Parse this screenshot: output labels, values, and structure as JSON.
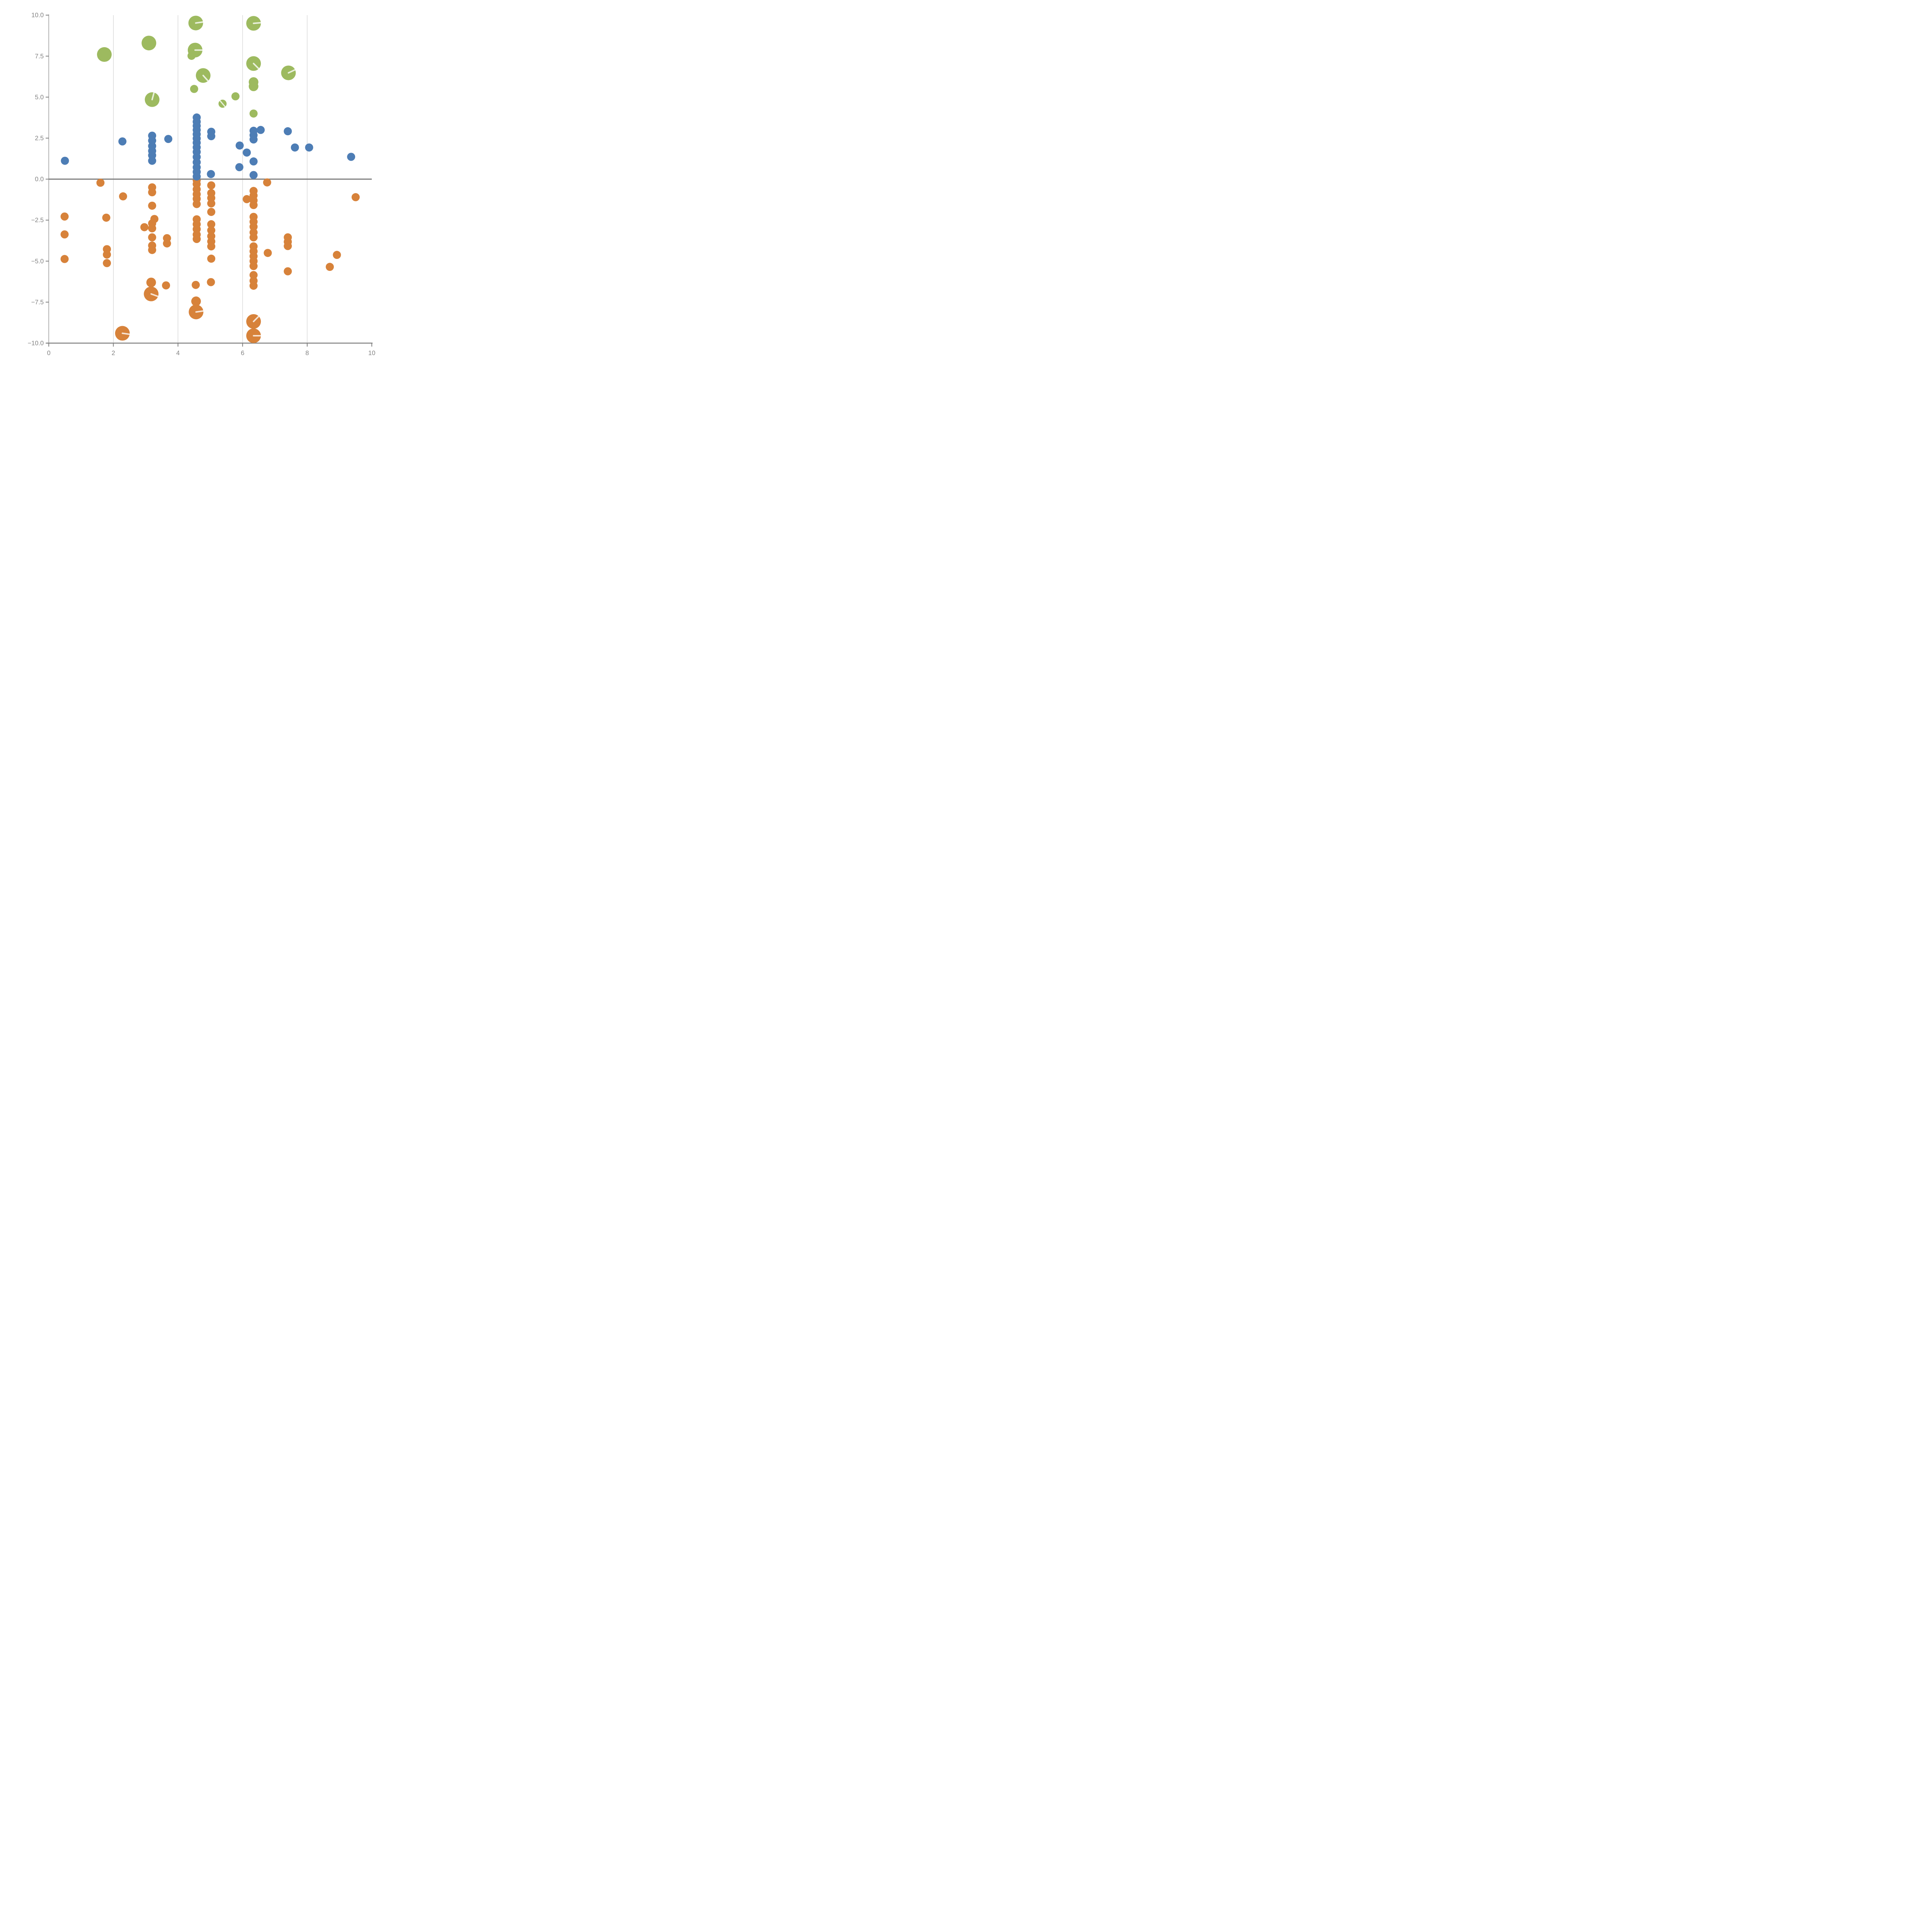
{
  "chart_data": {
    "type": "scatter",
    "title": "",
    "xlabel": "",
    "ylabel": "",
    "xlim": [
      0,
      10
    ],
    "ylim": [
      -10,
      10
    ],
    "x_ticks": [
      0,
      2,
      4,
      6,
      8,
      10
    ],
    "x_tick_labels": [
      "0",
      "2",
      "4",
      "6",
      "8",
      "10"
    ],
    "y_ticks": [
      10.0,
      7.5,
      5.0,
      2.5,
      0.0,
      -2.5,
      -5.0,
      -7.5,
      -10.0
    ],
    "y_tick_labels": [
      "10.0",
      "7.5",
      "5.0",
      "2.5",
      "0.0",
      "−2.5",
      "−5.0",
      "−7.5",
      "−10.0"
    ],
    "grid": "vertical gridlines at x = 2,4,6,8 only",
    "legend_position": "none",
    "zero_line_y": 0,
    "marker_sizes_px": {
      "s": 10.5,
      "m": 12.5,
      "l": 19
    },
    "series": [
      {
        "name": "green-bubbles",
        "color": "#9dba5f",
        "points": [
          [
            1.72,
            7.6,
            "l",
            null
          ],
          [
            3.1,
            8.3,
            "l",
            null
          ],
          [
            4.55,
            9.52,
            "l",
            -8
          ],
          [
            4.53,
            7.87,
            "l",
            0
          ],
          [
            4.42,
            7.52,
            "s",
            null
          ],
          [
            4.78,
            6.32,
            "l",
            48
          ],
          [
            4.5,
            5.5,
            "s",
            null
          ],
          [
            3.2,
            4.85,
            "l",
            -75
          ],
          [
            6.34,
            9.5,
            "l",
            -5
          ],
          [
            6.34,
            7.05,
            "l",
            45
          ],
          [
            6.34,
            5.92,
            "m",
            null
          ],
          [
            6.34,
            5.66,
            "m",
            null
          ],
          [
            6.34,
            4.0,
            "s",
            null
          ],
          [
            7.42,
            6.48,
            "l",
            -25
          ],
          [
            5.78,
            5.05,
            "s",
            null
          ],
          [
            5.38,
            4.6,
            "s",
            50,
            2
          ]
        ]
      },
      {
        "name": "blue-dots",
        "color": "#4d7db5",
        "points": [
          [
            0.5,
            1.12
          ],
          [
            2.28,
            2.3
          ],
          [
            3.2,
            2.65
          ],
          [
            3.2,
            2.35
          ],
          [
            3.2,
            2.02
          ],
          [
            3.2,
            1.72
          ],
          [
            3.2,
            1.45
          ],
          [
            3.2,
            1.12
          ],
          [
            3.7,
            2.45
          ],
          [
            4.58,
            3.76
          ],
          [
            4.58,
            3.5
          ],
          [
            4.58,
            3.25
          ],
          [
            4.58,
            3.0
          ],
          [
            4.58,
            2.74
          ],
          [
            4.58,
            2.48
          ],
          [
            4.58,
            2.22
          ],
          [
            4.58,
            1.94
          ],
          [
            4.58,
            1.66
          ],
          [
            4.58,
            1.35
          ],
          [
            4.58,
            1.03
          ],
          [
            4.58,
            0.72
          ],
          [
            4.58,
            0.44
          ],
          [
            4.58,
            0.16
          ],
          [
            5.03,
            2.89
          ],
          [
            5.03,
            2.62
          ],
          [
            5.02,
            0.31
          ],
          [
            5.91,
            2.05
          ],
          [
            5.9,
            0.73
          ],
          [
            6.13,
            1.62
          ],
          [
            6.34,
            2.95
          ],
          [
            6.34,
            2.68
          ],
          [
            6.34,
            2.42
          ],
          [
            6.34,
            1.08
          ],
          [
            6.34,
            0.25
          ],
          [
            6.56,
            3.0
          ],
          [
            7.4,
            2.92
          ],
          [
            7.62,
            1.93
          ],
          [
            8.06,
            1.93
          ],
          [
            9.36,
            1.36
          ]
        ]
      },
      {
        "name": "orange-dots",
        "color": "#d7823a",
        "points": [
          [
            1.6,
            -0.22
          ],
          [
            2.3,
            -1.05
          ],
          [
            0.49,
            -2.28
          ],
          [
            0.49,
            -3.37
          ],
          [
            0.49,
            -4.87
          ],
          [
            1.78,
            -2.35
          ],
          [
            1.8,
            -4.27
          ],
          [
            1.8,
            -4.6
          ],
          [
            1.8,
            -5.12
          ],
          [
            3.2,
            -0.5
          ],
          [
            3.2,
            -0.8
          ],
          [
            3.2,
            -1.62
          ],
          [
            3.27,
            -2.43
          ],
          [
            3.2,
            -2.7
          ],
          [
            2.96,
            -2.93
          ],
          [
            3.2,
            -3.0
          ],
          [
            3.2,
            -3.55
          ],
          [
            3.2,
            -4.05
          ],
          [
            3.2,
            -4.32
          ],
          [
            3.66,
            -3.6
          ],
          [
            3.66,
            -3.92
          ],
          [
            3.17,
            -6.3,
            "m"
          ],
          [
            3.17,
            -7.0,
            "l",
            20
          ],
          [
            3.63,
            -6.48
          ],
          [
            4.58,
            -0.06,
            "s",
            null,
            "under"
          ],
          [
            4.58,
            -0.3
          ],
          [
            4.58,
            -0.62
          ],
          [
            4.58,
            -0.92
          ],
          [
            4.58,
            -1.2
          ],
          [
            4.58,
            -1.52
          ],
          [
            4.58,
            -2.45
          ],
          [
            4.58,
            -2.75
          ],
          [
            4.58,
            -3.05
          ],
          [
            4.58,
            -3.38
          ],
          [
            4.58,
            -3.65
          ],
          [
            4.55,
            -6.45
          ],
          [
            4.56,
            -7.45,
            "m"
          ],
          [
            4.56,
            -8.1,
            "l",
            -8
          ],
          [
            5.03,
            -0.38
          ],
          [
            5.03,
            -0.85
          ],
          [
            5.03,
            -1.15
          ],
          [
            5.03,
            -1.48
          ],
          [
            5.03,
            -2.0
          ],
          [
            5.03,
            -2.75
          ],
          [
            5.03,
            -3.12
          ],
          [
            5.03,
            -3.48
          ],
          [
            5.03,
            -3.8
          ],
          [
            5.03,
            -4.1
          ],
          [
            5.03,
            -4.85
          ],
          [
            5.02,
            -6.28
          ],
          [
            6.34,
            -0.72
          ],
          [
            6.34,
            -1.0
          ],
          [
            6.34,
            -1.3
          ],
          [
            6.34,
            -1.58
          ],
          [
            6.34,
            -2.3
          ],
          [
            6.34,
            -2.6
          ],
          [
            6.34,
            -2.9
          ],
          [
            6.34,
            -3.25
          ],
          [
            6.34,
            -3.55
          ],
          [
            6.34,
            -4.1
          ],
          [
            6.34,
            -4.4
          ],
          [
            6.34,
            -4.7
          ],
          [
            6.34,
            -5.0
          ],
          [
            6.34,
            -5.3
          ],
          [
            6.34,
            -5.85
          ],
          [
            6.34,
            -6.2
          ],
          [
            6.34,
            -6.5
          ],
          [
            6.13,
            -1.22
          ],
          [
            6.76,
            -0.2
          ],
          [
            6.78,
            -4.5
          ],
          [
            7.4,
            -3.55
          ],
          [
            7.4,
            -3.82
          ],
          [
            7.4,
            -4.08
          ],
          [
            7.4,
            -5.62
          ],
          [
            8.7,
            -5.35
          ],
          [
            8.92,
            -4.62
          ],
          [
            9.5,
            -1.1
          ],
          [
            2.28,
            -9.4,
            "l",
            8
          ],
          [
            6.34,
            -8.68,
            "l",
            -45
          ],
          [
            6.34,
            -9.55,
            "l",
            0
          ]
        ]
      }
    ]
  },
  "colors": {
    "background": "#ffffff",
    "axis": "#7f7f7f",
    "tick_label": "#848484",
    "gridline": "#c9c9c9",
    "zero_line": "#7f7f7f",
    "bubble_slash": "rgba(255,255,255,0.78)"
  }
}
